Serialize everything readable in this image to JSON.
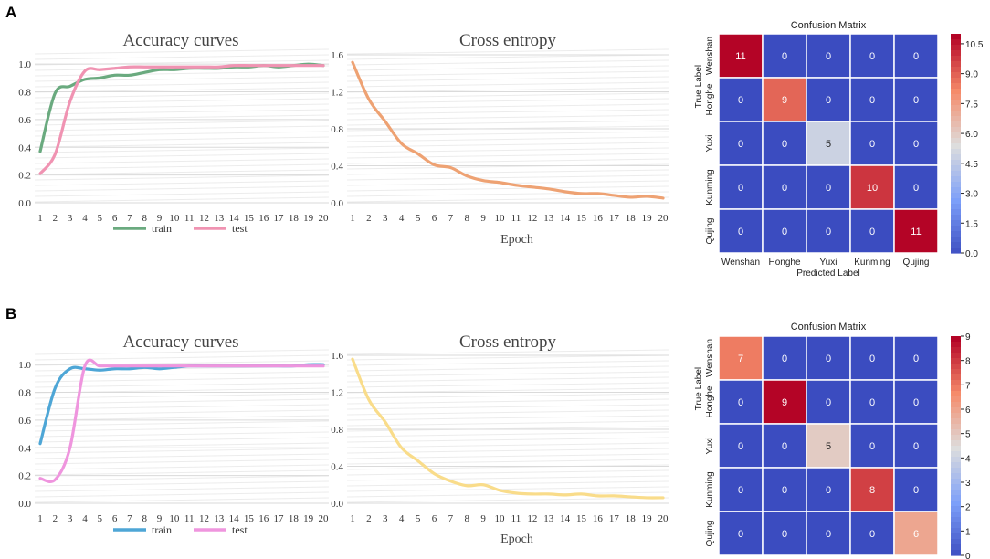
{
  "panels": [
    {
      "letter": "A",
      "accuracy": {
        "title": "Accuracy curves",
        "x": [
          1,
          2,
          3,
          4,
          5,
          6,
          7,
          8,
          9,
          10,
          11,
          12,
          13,
          14,
          15,
          16,
          17,
          18,
          19,
          20
        ],
        "x_tick_labels": [
          "1",
          "2",
          "3",
          "4",
          "5",
          "6",
          "7",
          "8",
          "9",
          "10",
          "11",
          "12",
          "13",
          "14",
          "15",
          "16",
          "17",
          "18",
          "19",
          "20"
        ],
        "y_ticks": [
          0.0,
          0.2,
          0.4,
          0.6,
          0.8,
          1.0
        ],
        "y_tick_labels": [
          "0.0",
          "0.2",
          "0.4",
          "0.6",
          "0.8",
          "1.0"
        ],
        "ylim": [
          0,
          1.1
        ],
        "series": [
          {
            "name": "train",
            "color": "#6aaa7f",
            "values": [
              0.37,
              0.79,
              0.84,
              0.89,
              0.9,
              0.92,
              0.92,
              0.94,
              0.96,
              0.96,
              0.97,
              0.97,
              0.97,
              0.98,
              0.98,
              0.99,
              0.98,
              0.99,
              1.0,
              0.99
            ]
          },
          {
            "name": "test",
            "color": "#f093b2",
            "values": [
              0.21,
              0.35,
              0.73,
              0.95,
              0.96,
              0.97,
              0.98,
              0.98,
              0.98,
              0.98,
              0.98,
              0.98,
              0.98,
              0.99,
              0.99,
              0.99,
              0.99,
              0.99,
              0.99,
              0.99
            ]
          }
        ]
      },
      "entropy": {
        "title": "Cross entropy",
        "xlabel": "Epoch",
        "color": "#eea273",
        "x": [
          1,
          2,
          3,
          4,
          5,
          6,
          7,
          8,
          9,
          10,
          11,
          12,
          13,
          14,
          15,
          16,
          17,
          18,
          19,
          20
        ],
        "x_tick_labels": [
          "1",
          "2",
          "3",
          "4",
          "5",
          "6",
          "7",
          "8",
          "9",
          "10",
          "11",
          "12",
          "13",
          "14",
          "15",
          "16",
          "17",
          "18",
          "19",
          "20"
        ],
        "y_ticks": [
          0.0,
          0.4,
          0.8,
          1.2,
          1.6
        ],
        "y_tick_labels": [
          "0.0",
          "0.4",
          "0.8",
          "1.2",
          "1.6"
        ],
        "ylim": [
          0,
          1.65
        ],
        "values": [
          1.52,
          1.12,
          0.88,
          0.64,
          0.53,
          0.41,
          0.38,
          0.29,
          0.24,
          0.22,
          0.19,
          0.17,
          0.15,
          0.12,
          0.1,
          0.1,
          0.08,
          0.06,
          0.07,
          0.05
        ]
      },
      "confusion": {
        "title": "Confusion Matrix",
        "xlabel": "Predicted Label",
        "ylabel": "True Label",
        "labels": [
          "Wenshan",
          "Honghe",
          "Yuxi",
          "Kunming",
          "Qujing"
        ],
        "matrix": [
          [
            11,
            0,
            0,
            0,
            0
          ],
          [
            0,
            9,
            0,
            0,
            0
          ],
          [
            0,
            0,
            5,
            0,
            0
          ],
          [
            0,
            0,
            0,
            10,
            0
          ],
          [
            0,
            0,
            0,
            0,
            11
          ]
        ],
        "colorbar_max": 11,
        "colorbar_ticks": [
          0,
          1.5,
          3,
          4.5,
          6,
          7.5,
          9,
          10.5
        ],
        "colorbar_tick_labels": [
          "0.0",
          "1.5",
          "3.0",
          "4.5",
          "6.0",
          "7.5",
          "9.0",
          "10.5"
        ]
      }
    },
    {
      "letter": "B",
      "accuracy": {
        "title": "Accuracy curves",
        "x": [
          1,
          2,
          3,
          4,
          5,
          6,
          7,
          8,
          9,
          10,
          11,
          12,
          13,
          14,
          15,
          16,
          17,
          18,
          19,
          20
        ],
        "x_tick_labels": [
          "1",
          "2",
          "3",
          "4",
          "5",
          "6",
          "7",
          "8",
          "9",
          "10",
          "11",
          "12",
          "13",
          "14",
          "15",
          "16",
          "17",
          "18",
          "19",
          "20"
        ],
        "y_ticks": [
          0.0,
          0.2,
          0.4,
          0.6,
          0.8,
          1.0
        ],
        "y_tick_labels": [
          "0.0",
          "0.2",
          "0.4",
          "0.6",
          "0.8",
          "1.0"
        ],
        "ylim": [
          0,
          1.1
        ],
        "series": [
          {
            "name": "train",
            "color": "#4ea6d6",
            "values": [
              0.43,
              0.83,
              0.97,
              0.97,
              0.96,
              0.97,
              0.97,
              0.98,
              0.97,
              0.98,
              0.99,
              0.99,
              0.99,
              0.99,
              0.99,
              0.99,
              0.99,
              0.99,
              1.0,
              1.0
            ]
          },
          {
            "name": "test",
            "color": "#ef95de",
            "values": [
              0.18,
              0.17,
              0.4,
              0.99,
              0.99,
              0.99,
              0.99,
              0.99,
              0.99,
              0.99,
              0.99,
              0.99,
              0.99,
              0.99,
              0.99,
              0.99,
              0.99,
              0.99,
              0.99,
              0.99
            ]
          }
        ]
      },
      "entropy": {
        "title": "Cross entropy",
        "xlabel": "Epoch",
        "color": "#f9dc8a",
        "x": [
          1,
          2,
          3,
          4,
          5,
          6,
          7,
          8,
          9,
          10,
          11,
          12,
          13,
          14,
          15,
          16,
          17,
          18,
          19,
          20
        ],
        "x_tick_labels": [
          "1",
          "2",
          "3",
          "4",
          "5",
          "6",
          "7",
          "8",
          "9",
          "10",
          "11",
          "12",
          "13",
          "14",
          "15",
          "16",
          "17",
          "18",
          "19",
          "20"
        ],
        "y_ticks": [
          0.0,
          0.4,
          0.8,
          1.2,
          1.6
        ],
        "y_tick_labels": [
          "0.0",
          "0.4",
          "0.8",
          "1.2",
          "1.6"
        ],
        "ylim": [
          0,
          1.65
        ],
        "values": [
          1.56,
          1.12,
          0.88,
          0.6,
          0.46,
          0.32,
          0.24,
          0.19,
          0.2,
          0.14,
          0.11,
          0.1,
          0.1,
          0.09,
          0.1,
          0.08,
          0.08,
          0.07,
          0.06,
          0.06
        ]
      },
      "confusion": {
        "title": "Confusion Matrix",
        "xlabel": "Predicted Label",
        "ylabel": "True Label",
        "labels": [
          "Wenshan",
          "Honghe",
          "Yuxi",
          "Kunming",
          "Qujing"
        ],
        "matrix": [
          [
            7,
            0,
            0,
            0,
            0
          ],
          [
            0,
            9,
            0,
            0,
            0
          ],
          [
            0,
            0,
            5,
            0,
            0
          ],
          [
            0,
            0,
            0,
            8,
            0
          ],
          [
            0,
            0,
            0,
            0,
            6
          ]
        ],
        "colorbar_max": 9,
        "colorbar_ticks": [
          0,
          1,
          2,
          3,
          4,
          5,
          6,
          7,
          8,
          9
        ],
        "colorbar_tick_labels": [
          "0",
          "1",
          "2",
          "3",
          "4",
          "5",
          "6",
          "7",
          "8",
          "9"
        ]
      }
    }
  ],
  "chart_data": [
    {
      "type": "line",
      "panel": "A",
      "title": "Accuracy curves",
      "x": [
        1,
        2,
        3,
        4,
        5,
        6,
        7,
        8,
        9,
        10,
        11,
        12,
        13,
        14,
        15,
        16,
        17,
        18,
        19,
        20
      ],
      "ylim": [
        0,
        1.1
      ],
      "series": [
        {
          "name": "train",
          "values": [
            0.37,
            0.79,
            0.84,
            0.89,
            0.9,
            0.92,
            0.92,
            0.94,
            0.96,
            0.96,
            0.97,
            0.97,
            0.97,
            0.98,
            0.98,
            0.99,
            0.98,
            0.99,
            1.0,
            0.99
          ]
        },
        {
          "name": "test",
          "values": [
            0.21,
            0.35,
            0.73,
            0.95,
            0.96,
            0.97,
            0.98,
            0.98,
            0.98,
            0.98,
            0.98,
            0.98,
            0.98,
            0.99,
            0.99,
            0.99,
            0.99,
            0.99,
            0.99,
            0.99
          ]
        }
      ]
    },
    {
      "type": "line",
      "panel": "A",
      "title": "Cross entropy",
      "xlabel": "Epoch",
      "x": [
        1,
        2,
        3,
        4,
        5,
        6,
        7,
        8,
        9,
        10,
        11,
        12,
        13,
        14,
        15,
        16,
        17,
        18,
        19,
        20
      ],
      "ylim": [
        0,
        1.6
      ],
      "values": [
        1.52,
        1.12,
        0.88,
        0.64,
        0.53,
        0.41,
        0.38,
        0.29,
        0.24,
        0.22,
        0.19,
        0.17,
        0.15,
        0.12,
        0.1,
        0.1,
        0.08,
        0.06,
        0.07,
        0.05
      ]
    },
    {
      "type": "heatmap",
      "panel": "A",
      "title": "Confusion Matrix",
      "xlabel": "Predicted Label",
      "ylabel": "True Label",
      "labels": [
        "Wenshan",
        "Honghe",
        "Yuxi",
        "Kunming",
        "Qujing"
      ],
      "matrix": [
        [
          11,
          0,
          0,
          0,
          0
        ],
        [
          0,
          9,
          0,
          0,
          0
        ],
        [
          0,
          0,
          5,
          0,
          0
        ],
        [
          0,
          0,
          0,
          10,
          0
        ],
        [
          0,
          0,
          0,
          0,
          11
        ]
      ]
    },
    {
      "type": "line",
      "panel": "B",
      "title": "Accuracy curves",
      "x": [
        1,
        2,
        3,
        4,
        5,
        6,
        7,
        8,
        9,
        10,
        11,
        12,
        13,
        14,
        15,
        16,
        17,
        18,
        19,
        20
      ],
      "ylim": [
        0,
        1.1
      ],
      "series": [
        {
          "name": "train",
          "values": [
            0.43,
            0.83,
            0.97,
            0.97,
            0.96,
            0.97,
            0.97,
            0.98,
            0.97,
            0.98,
            0.99,
            0.99,
            0.99,
            0.99,
            0.99,
            0.99,
            0.99,
            0.99,
            1.0,
            1.0
          ]
        },
        {
          "name": "test",
          "values": [
            0.18,
            0.17,
            0.4,
            0.99,
            0.99,
            0.99,
            0.99,
            0.99,
            0.99,
            0.99,
            0.99,
            0.99,
            0.99,
            0.99,
            0.99,
            0.99,
            0.99,
            0.99,
            0.99,
            0.99
          ]
        }
      ]
    },
    {
      "type": "line",
      "panel": "B",
      "title": "Cross entropy",
      "xlabel": "Epoch",
      "x": [
        1,
        2,
        3,
        4,
        5,
        6,
        7,
        8,
        9,
        10,
        11,
        12,
        13,
        14,
        15,
        16,
        17,
        18,
        19,
        20
      ],
      "ylim": [
        0,
        1.6
      ],
      "values": [
        1.56,
        1.12,
        0.88,
        0.6,
        0.46,
        0.32,
        0.24,
        0.19,
        0.2,
        0.14,
        0.11,
        0.1,
        0.1,
        0.09,
        0.1,
        0.08,
        0.08,
        0.07,
        0.06,
        0.06
      ]
    },
    {
      "type": "heatmap",
      "panel": "B",
      "title": "Confusion Matrix",
      "xlabel": "Predicted Label",
      "ylabel": "True Label",
      "labels": [
        "Wenshan",
        "Honghe",
        "Yuxi",
        "Kunming",
        "Qujing"
      ],
      "matrix": [
        [
          7,
          0,
          0,
          0,
          0
        ],
        [
          0,
          9,
          0,
          0,
          0
        ],
        [
          0,
          0,
          5,
          0,
          0
        ],
        [
          0,
          0,
          0,
          8,
          0
        ],
        [
          0,
          0,
          0,
          0,
          6
        ]
      ]
    }
  ]
}
